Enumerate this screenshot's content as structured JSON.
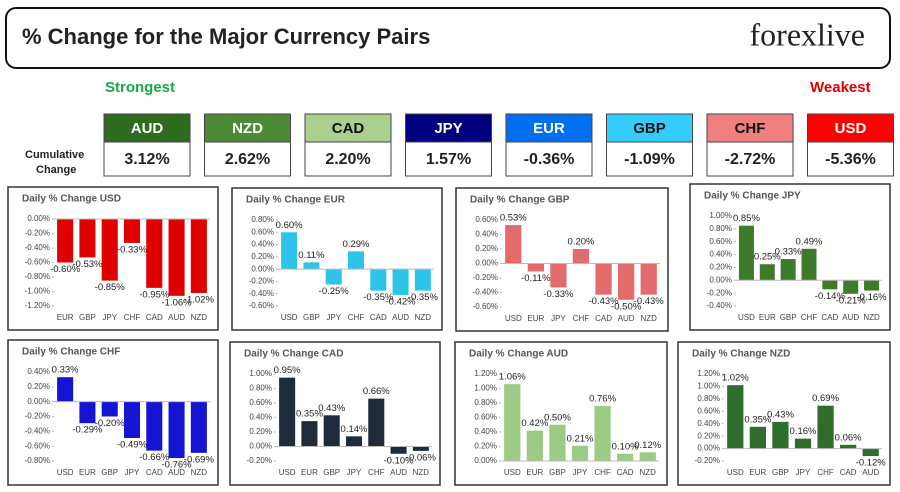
{
  "header": {
    "title": "% Change for the Major Currency Pairs",
    "logo": "forexlive"
  },
  "strength": {
    "strongest": "Strongest",
    "weakest": "Weakest",
    "row_label": "Cumulative Change",
    "currencies": [
      {
        "name": "AUD",
        "change": "3.12%",
        "color": "#2e6b1f"
      },
      {
        "name": "NZD",
        "change": "2.62%",
        "color": "#4e8a35"
      },
      {
        "name": "CAD",
        "change": "2.20%",
        "color": "#a9d08e"
      },
      {
        "name": "JPY",
        "change": "1.57%",
        "color": "#00007f"
      },
      {
        "name": "EUR",
        "change": "-0.36%",
        "color": "#0070f0"
      },
      {
        "name": "GBP",
        "change": "-1.09%",
        "color": "#33ccff"
      },
      {
        "name": "CHF",
        "change": "-2.72%",
        "color": "#f08080"
      },
      {
        "name": "USD",
        "change": "-5.36%",
        "color": "#ff0000"
      }
    ]
  },
  "chart_data": [
    {
      "type": "bar",
      "title": "Daily % Change USD",
      "categories": [
        "EUR",
        "GBP",
        "JPY",
        "CHF",
        "CAD",
        "AUD",
        "NZD"
      ],
      "values": [
        -0.6,
        -0.53,
        -0.85,
        -0.33,
        -0.95,
        -1.06,
        -1.02
      ],
      "value_labels": [
        "-0.60%",
        "-0.53%",
        "-0.85%",
        "-0.33%",
        "-0.95%",
        "-1.06%",
        "-1.02%"
      ],
      "color": "#e00000",
      "ylim": [
        -1.2,
        0
      ],
      "yticks": [
        {
          "value": 0,
          "label": "0.00%"
        },
        {
          "value": -0.2,
          "label": "-0.20%"
        },
        {
          "value": -0.4,
          "label": "-0.40%"
        },
        {
          "value": -0.6,
          "label": "-0.60%"
        },
        {
          "value": -0.8,
          "label": "-0.80%"
        },
        {
          "value": -1.0,
          "label": "-1.00%"
        },
        {
          "value": -1.2,
          "label": "-1.20%"
        }
      ]
    },
    {
      "type": "bar",
      "title": "Daily % Change EUR",
      "categories": [
        "USD",
        "GBP",
        "JPY",
        "CHF",
        "CAD",
        "AUD",
        "NZD"
      ],
      "values": [
        0.6,
        0.11,
        -0.25,
        0.29,
        -0.35,
        -0.42,
        -0.35
      ],
      "value_labels": [
        "0.60%",
        "0.11%",
        "-0.25%",
        "0.29%",
        "-0.35%",
        "-0.42%",
        "-0.35%"
      ],
      "color": "#2ec4ea",
      "ylim": [
        -0.6,
        0.8
      ],
      "yticks": [
        {
          "value": 0.8,
          "label": "0.80%"
        },
        {
          "value": 0.6,
          "label": "0.60%"
        },
        {
          "value": 0.4,
          "label": "0.40%"
        },
        {
          "value": 0.2,
          "label": "0.20%"
        },
        {
          "value": 0,
          "label": "0.00%"
        },
        {
          "value": -0.2,
          "label": "-0.20%"
        },
        {
          "value": -0.4,
          "label": "-0.40%"
        },
        {
          "value": -0.6,
          "label": "-0.60%"
        }
      ]
    },
    {
      "type": "bar",
      "title": "Daily % Change GBP",
      "categories": [
        "USD",
        "EUR",
        "JPY",
        "CHF",
        "CAD",
        "AUD",
        "NZD"
      ],
      "values": [
        0.53,
        -0.11,
        -0.33,
        0.2,
        -0.43,
        -0.5,
        -0.43
      ],
      "value_labels": [
        "0.53%",
        "-0.11%",
        "-0.33%",
        "0.20%",
        "-0.43%",
        "-0.50%",
        "-0.43%"
      ],
      "color": "#e36b6b",
      "ylim": [
        -0.6,
        0.6
      ],
      "yticks": [
        {
          "value": 0.6,
          "label": "0.60%"
        },
        {
          "value": 0.4,
          "label": "0.40%"
        },
        {
          "value": 0.2,
          "label": "0.20%"
        },
        {
          "value": 0,
          "label": "0.00%"
        },
        {
          "value": -0.2,
          "label": "-0.20%"
        },
        {
          "value": -0.4,
          "label": "-0.40%"
        },
        {
          "value": -0.6,
          "label": "-0.60%"
        }
      ]
    },
    {
      "type": "bar",
      "title": "Daily % Change JPY",
      "categories": [
        "USD",
        "EUR",
        "GBP",
        "CHF",
        "CAD",
        "AUD",
        "NZD"
      ],
      "values": [
        0.85,
        0.25,
        0.33,
        0.49,
        -0.14,
        -0.21,
        -0.16
      ],
      "value_labels": [
        "0.85%",
        "0.25%",
        "0.33%",
        "0.49%",
        "-0.14%",
        "-0.21%",
        "-0.16%"
      ],
      "color": "#3d7a2a",
      "ylim": [
        -0.4,
        1.0
      ],
      "yticks": [
        {
          "value": 1.0,
          "label": "1.00%"
        },
        {
          "value": 0.8,
          "label": "0.80%"
        },
        {
          "value": 0.6,
          "label": "0.60%"
        },
        {
          "value": 0.4,
          "label": "0.40%"
        },
        {
          "value": 0.2,
          "label": "0.20%"
        },
        {
          "value": 0,
          "label": "0.00%"
        },
        {
          "value": -0.2,
          "label": "-0.20%"
        },
        {
          "value": -0.4,
          "label": "-0.40%"
        }
      ]
    },
    {
      "type": "bar",
      "title": "Daily % Change CHF",
      "categories": [
        "USD",
        "EUR",
        "GBP",
        "JPY",
        "CAD",
        "AUD",
        "NZD"
      ],
      "values": [
        0.33,
        -0.29,
        -0.2,
        -0.49,
        -0.66,
        -0.76,
        -0.69
      ],
      "value_labels": [
        "0.33%",
        "-0.29%",
        "-0.20%",
        "-0.49%",
        "-0.66%",
        "-0.76%",
        "-0.69%"
      ],
      "color": "#1414d2",
      "ylim": [
        -0.8,
        0.4
      ],
      "yticks": [
        {
          "value": 0.4,
          "label": "0.40%"
        },
        {
          "value": 0.2,
          "label": "0.20%"
        },
        {
          "value": 0,
          "label": "0.00%"
        },
        {
          "value": -0.2,
          "label": "-0.20%"
        },
        {
          "value": -0.4,
          "label": "-0.40%"
        },
        {
          "value": -0.6,
          "label": "-0.60%"
        },
        {
          "value": -0.8,
          "label": "-0.80%"
        }
      ]
    },
    {
      "type": "bar",
      "title": "Daily % Change CAD",
      "categories": [
        "USD",
        "EUR",
        "GBP",
        "JPY",
        "CHF",
        "AUD",
        "NZD"
      ],
      "values": [
        0.95,
        0.35,
        0.43,
        0.14,
        0.66,
        -0.1,
        -0.06
      ],
      "value_labels": [
        "0.95%",
        "0.35%",
        "0.43%",
        "0.14%",
        "0.66%",
        "-0.10%",
        "-0.06%"
      ],
      "color": "#1e2b3a",
      "ylim": [
        -0.2,
        1.0
      ],
      "yticks": [
        {
          "value": 1.0,
          "label": "1.00%"
        },
        {
          "value": 0.8,
          "label": "0.80%"
        },
        {
          "value": 0.6,
          "label": "0.60%"
        },
        {
          "value": 0.4,
          "label": "0.40%"
        },
        {
          "value": 0.2,
          "label": "0.20%"
        },
        {
          "value": 0,
          "label": "0.00%"
        },
        {
          "value": -0.2,
          "label": "-0.20%"
        }
      ]
    },
    {
      "type": "bar",
      "title": "Daily % Change AUD",
      "categories": [
        "USD",
        "EUR",
        "GBP",
        "JPY",
        "CHF",
        "CAD",
        "NZD"
      ],
      "values": [
        1.06,
        0.42,
        0.5,
        0.21,
        0.76,
        0.1,
        0.12
      ],
      "value_labels": [
        "1.06%",
        "0.42%",
        "0.50%",
        "0.21%",
        "0.76%",
        "0.10%",
        "0.12%"
      ],
      "color": "#9bcb85",
      "ylim": [
        0,
        1.2
      ],
      "yticks": [
        {
          "value": 1.2,
          "label": "1.20%"
        },
        {
          "value": 1.0,
          "label": "1.00%"
        },
        {
          "value": 0.8,
          "label": "0.80%"
        },
        {
          "value": 0.6,
          "label": "0.60%"
        },
        {
          "value": 0.4,
          "label": "0.40%"
        },
        {
          "value": 0.2,
          "label": "0.20%"
        },
        {
          "value": 0,
          "label": "0.00%"
        }
      ]
    },
    {
      "type": "bar",
      "title": "Daily % Change NZD",
      "categories": [
        "USD",
        "EUR",
        "GBP",
        "JPY",
        "CHF",
        "CAD",
        "AUD"
      ],
      "values": [
        1.02,
        0.35,
        0.43,
        0.16,
        0.69,
        0.06,
        -0.12
      ],
      "value_labels": [
        "1.02%",
        "0.35%",
        "0.43%",
        "0.16%",
        "0.69%",
        "0.06%",
        "-0.12%"
      ],
      "color": "#2f6e2a",
      "ylim": [
        -0.2,
        1.2
      ],
      "yticks": [
        {
          "value": 1.2,
          "label": "1.20%"
        },
        {
          "value": 1.0,
          "label": "1.00%"
        },
        {
          "value": 0.8,
          "label": "0.80%"
        },
        {
          "value": 0.6,
          "label": "0.60%"
        },
        {
          "value": 0.4,
          "label": "0.40%"
        },
        {
          "value": 0.2,
          "label": "0.20%"
        },
        {
          "value": 0,
          "label": "0.00%"
        },
        {
          "value": -0.2,
          "label": "-0.20%"
        }
      ]
    }
  ]
}
